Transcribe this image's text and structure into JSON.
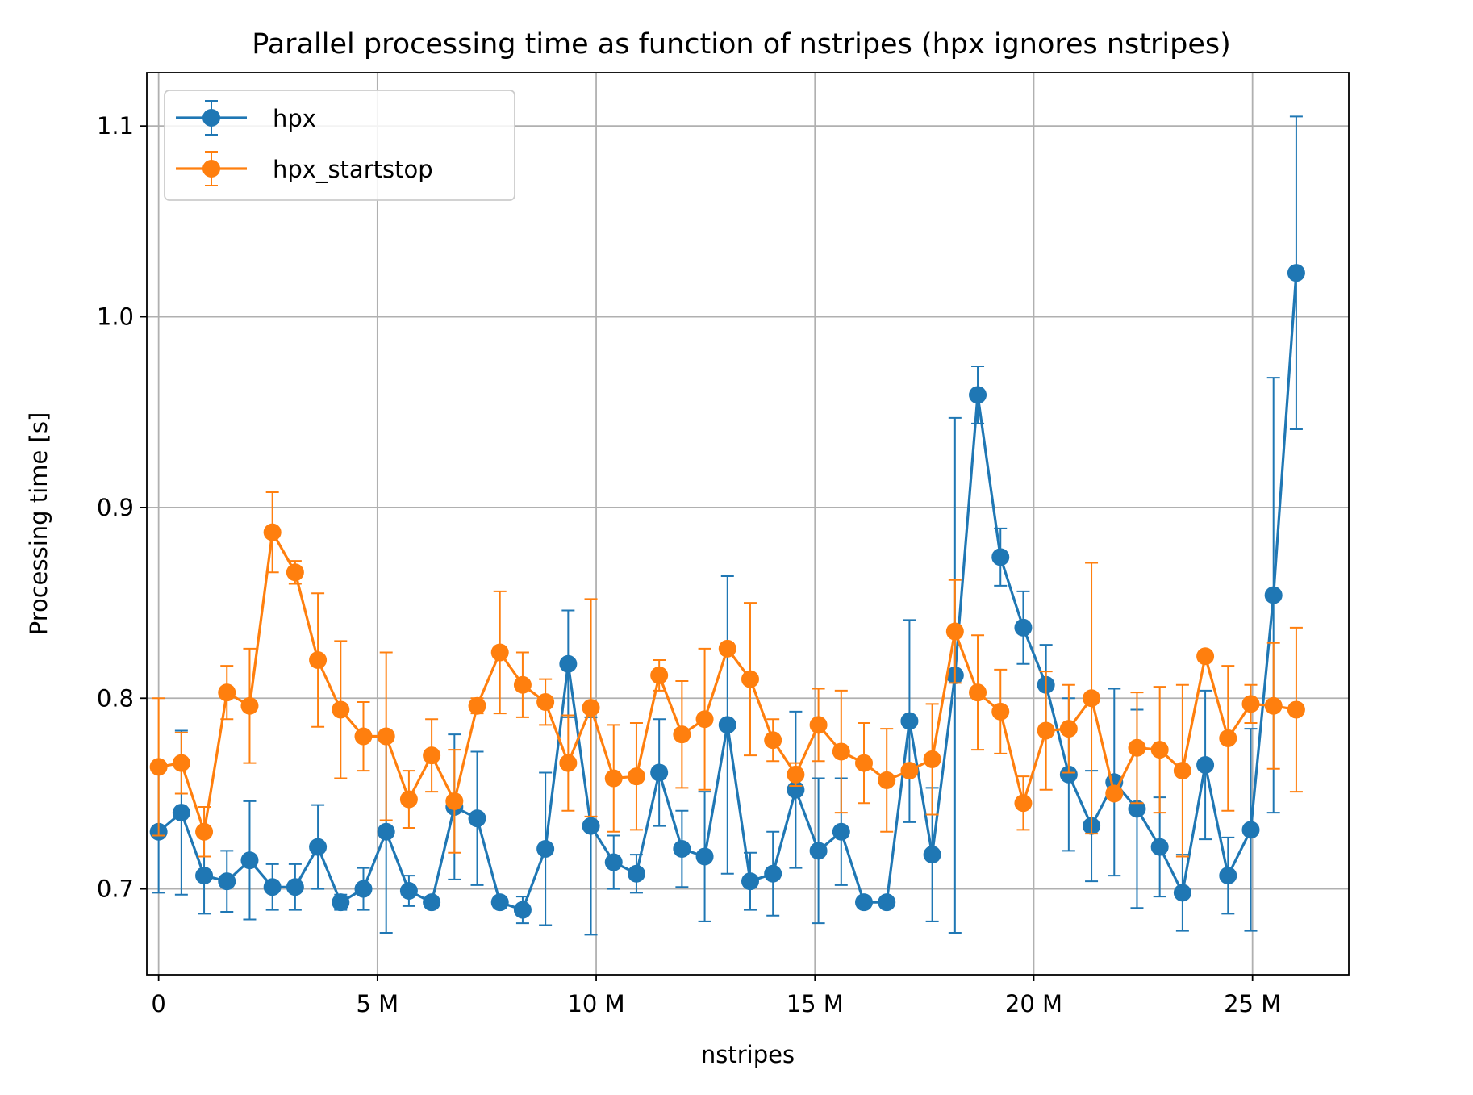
{
  "chart_data": {
    "type": "line",
    "title": "Parallel processing time as function of nstripes (hpx ignores nstripes)",
    "xlabel": "nstripes",
    "ylabel": "Processing time [s]",
    "xlim": [
      -270000,
      27200000
    ],
    "ylim": [
      0.655,
      1.128
    ],
    "x_ticks": [
      {
        "value": 0,
        "label": "0"
      },
      {
        "value": 5000000,
        "label": "5 M"
      },
      {
        "value": 10000000,
        "label": "10 M"
      },
      {
        "value": 15000000,
        "label": "15 M"
      },
      {
        "value": 20000000,
        "label": "20 M"
      },
      {
        "value": 25000000,
        "label": "25 M"
      }
    ],
    "y_ticks": [
      {
        "value": 0.7,
        "label": "0.7"
      },
      {
        "value": 0.8,
        "label": "0.8"
      },
      {
        "value": 0.9,
        "label": "0.9"
      },
      {
        "value": 1.0,
        "label": "1.0"
      },
      {
        "value": 1.1,
        "label": "1.1"
      }
    ],
    "grid": true,
    "legend_position": "top-left",
    "x": [
      0,
      520000,
      1040000,
      1560000,
      2080000,
      2600000,
      3120000,
      3640000,
      4160000,
      4680000,
      5200000,
      5720000,
      6240000,
      6760000,
      7280000,
      7800000,
      8320000,
      8840000,
      9360000,
      9880000,
      10400000,
      10920000,
      11440000,
      11960000,
      12480000,
      13000000,
      13520000,
      14040000,
      14560000,
      15080000,
      15600000,
      16120000,
      16640000,
      17160000,
      17680000,
      18200000,
      18720000,
      19240000,
      19760000,
      20280000,
      20800000,
      21320000,
      21840000,
      22360000,
      22880000,
      23400000,
      23920000,
      24440000,
      24960000,
      25480000,
      26000000
    ],
    "series": [
      {
        "name": "hpx",
        "color": "#1f77b4",
        "values": [
          0.73,
          0.74,
          0.707,
          0.704,
          0.715,
          0.701,
          0.701,
          0.722,
          0.693,
          0.7,
          0.73,
          0.699,
          0.693,
          0.743,
          0.737,
          0.693,
          0.689,
          0.721,
          0.818,
          0.733,
          0.714,
          0.708,
          0.761,
          0.721,
          0.717,
          0.786,
          0.704,
          0.708,
          0.752,
          0.72,
          0.73,
          0.693,
          0.693,
          0.788,
          0.718,
          0.812,
          0.959,
          0.874,
          0.837,
          0.807,
          0.76,
          0.733,
          0.756,
          0.742,
          0.722,
          0.698,
          0.765,
          0.707,
          0.731,
          0.854,
          1.023
        ],
        "errors": [
          0.032,
          0.043,
          0.02,
          0.016,
          0.031,
          0.012,
          0.012,
          0.022,
          0.004,
          0.011,
          0.053,
          0.008,
          0.002,
          0.038,
          0.035,
          0.003,
          0.007,
          0.04,
          0.028,
          0.057,
          0.014,
          0.01,
          0.028,
          0.02,
          0.034,
          0.078,
          0.015,
          0.022,
          0.041,
          0.038,
          0.028,
          0.001,
          0.001,
          0.053,
          0.035,
          0.135,
          0.015,
          0.015,
          0.019,
          0.021,
          0.04,
          0.029,
          0.049,
          0.052,
          0.026,
          0.02,
          0.039,
          0.02,
          0.053,
          0.114,
          0.082
        ]
      },
      {
        "name": "hpx_startstop",
        "color": "#ff7f0e",
        "values": [
          0.764,
          0.766,
          0.73,
          0.803,
          0.796,
          0.887,
          0.866,
          0.82,
          0.794,
          0.78,
          0.78,
          0.747,
          0.77,
          0.746,
          0.796,
          0.824,
          0.807,
          0.798,
          0.766,
          0.795,
          0.758,
          0.759,
          0.812,
          0.781,
          0.789,
          0.826,
          0.81,
          0.778,
          0.76,
          0.786,
          0.772,
          0.766,
          0.757,
          0.762,
          0.768,
          0.835,
          0.803,
          0.793,
          0.745,
          0.783,
          0.784,
          0.8,
          0.75,
          0.774,
          0.773,
          0.762,
          0.822,
          0.779,
          0.797,
          0.796,
          0.794
        ],
        "errors": [
          0.036,
          0.016,
          0.013,
          0.014,
          0.03,
          0.021,
          0.006,
          0.035,
          0.036,
          0.018,
          0.044,
          0.015,
          0.019,
          0.027,
          0.004,
          0.032,
          0.017,
          0.012,
          0.025,
          0.057,
          0.028,
          0.028,
          0.008,
          0.028,
          0.037,
          0.003,
          0.04,
          0.011,
          0.006,
          0.019,
          0.032,
          0.021,
          0.027,
          0.001,
          0.029,
          0.027,
          0.03,
          0.022,
          0.014,
          0.031,
          0.023,
          0.071,
          0.002,
          0.029,
          0.033,
          0.045,
          0.001,
          0.038,
          0.01,
          0.033,
          0.043
        ]
      }
    ]
  }
}
